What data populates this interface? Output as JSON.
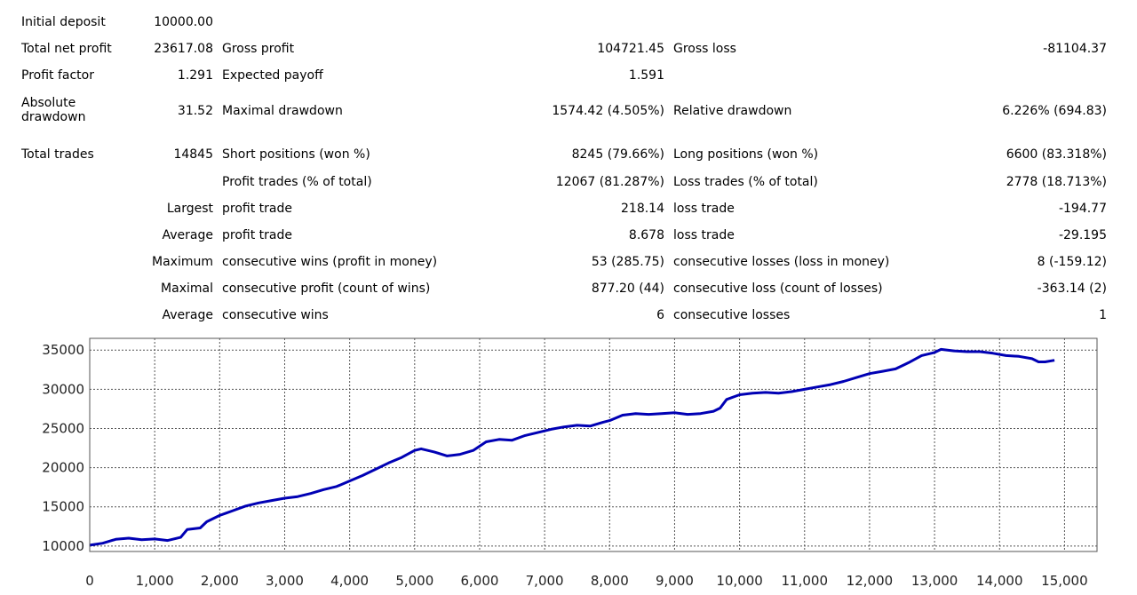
{
  "report": {
    "initial_deposit": {
      "label": "Initial deposit",
      "value": "10000.00"
    },
    "total_net_profit": {
      "label": "Total net profit",
      "value": "23617.08"
    },
    "gross_profit": {
      "label": "Gross profit",
      "value": "104721.45"
    },
    "gross_loss": {
      "label": "Gross loss",
      "value": "-81104.37"
    },
    "profit_factor": {
      "label": "Profit factor",
      "value": "1.291"
    },
    "expected_payoff": {
      "label": "Expected payoff",
      "value": "1.591"
    },
    "absolute_drawdown": {
      "label": "Absolute drawdown",
      "value": "31.52"
    },
    "maximal_drawdown": {
      "label": "Maximal drawdown",
      "value": "1574.42 (4.505%)"
    },
    "relative_drawdown": {
      "label": "Relative drawdown",
      "value": "6.226% (694.83)"
    },
    "total_trades": {
      "label": "Total trades",
      "value": "14845"
    },
    "short_positions": {
      "label": "Short positions (won %)",
      "value": "8245 (79.66%)"
    },
    "long_positions": {
      "label": "Long positions (won %)",
      "value": "6600 (83.318%)"
    },
    "profit_trades": {
      "label": "Profit trades (% of total)",
      "value": "12067 (81.287%)"
    },
    "loss_trades": {
      "label": "Loss trades (% of total)",
      "value": "2778 (18.713%)"
    },
    "largest": {
      "prefix": "Largest",
      "profit_label": "profit trade",
      "profit_value": "218.14",
      "loss_label": "loss trade",
      "loss_value": "-194.77"
    },
    "average": {
      "prefix": "Average",
      "profit_label": "profit trade",
      "profit_value": "8.678",
      "loss_label": "loss trade",
      "loss_value": "-29.195"
    },
    "maximum": {
      "prefix": "Maximum",
      "wins_label": "consecutive wins (profit in money)",
      "wins_value": "53 (285.75)",
      "losses_label": "consecutive losses (loss in money)",
      "losses_value": "8 (-159.12)"
    },
    "maximal": {
      "prefix": "Maximal",
      "profit_label": "consecutive profit (count of wins)",
      "profit_value": "877.20 (44)",
      "loss_label": "consecutive loss (count of losses)",
      "loss_value": "-363.14 (2)"
    },
    "average_consecutive": {
      "prefix": "Average",
      "wins_label": "consecutive wins",
      "wins_value": "6",
      "losses_label": "consecutive losses",
      "losses_value": "1"
    }
  },
  "chart_data": {
    "type": "line",
    "title": "",
    "xlabel": "",
    "ylabel": "",
    "xlim": [
      0,
      15500
    ],
    "ylim": [
      9300,
      36500
    ],
    "x_ticks": [
      0,
      1000,
      2000,
      3000,
      4000,
      5000,
      6000,
      7000,
      8000,
      9000,
      10000,
      11000,
      12000,
      13000,
      14000,
      15000
    ],
    "x_tick_labels": [
      "0",
      "1,000",
      "2,000",
      "3,000",
      "4,000",
      "5,000",
      "6,000",
      "7,000",
      "8,000",
      "9,000",
      "10,000",
      "11,000",
      "12,000",
      "13,000",
      "14,000",
      "15,000"
    ],
    "y_ticks": [
      10000,
      15000,
      20000,
      25000,
      30000,
      35000
    ],
    "y_tick_labels": [
      "10000",
      "15000",
      "20000",
      "25000",
      "30000",
      "35000"
    ],
    "grid": true,
    "line_color": "#0000b4",
    "series": [
      {
        "values": [
          [
            0,
            10100
          ],
          [
            200,
            10350
          ],
          [
            400,
            10850
          ],
          [
            600,
            11000
          ],
          [
            800,
            10800
          ],
          [
            1000,
            10900
          ],
          [
            1200,
            10700
          ],
          [
            1400,
            11100
          ],
          [
            1500,
            12100
          ],
          [
            1700,
            12300
          ],
          [
            1800,
            13100
          ],
          [
            2000,
            13900
          ],
          [
            2200,
            14500
          ],
          [
            2400,
            15100
          ],
          [
            2600,
            15500
          ],
          [
            2800,
            15800
          ],
          [
            3000,
            16100
          ],
          [
            3200,
            16300
          ],
          [
            3400,
            16700
          ],
          [
            3600,
            17200
          ],
          [
            3800,
            17600
          ],
          [
            4000,
            18300
          ],
          [
            4200,
            19000
          ],
          [
            4400,
            19800
          ],
          [
            4600,
            20600
          ],
          [
            4800,
            21300
          ],
          [
            5000,
            22200
          ],
          [
            5100,
            22400
          ],
          [
            5300,
            22000
          ],
          [
            5500,
            21500
          ],
          [
            5700,
            21700
          ],
          [
            5900,
            22200
          ],
          [
            6100,
            23300
          ],
          [
            6300,
            23600
          ],
          [
            6500,
            23500
          ],
          [
            6700,
            24100
          ],
          [
            6900,
            24500
          ],
          [
            7100,
            24900
          ],
          [
            7300,
            25200
          ],
          [
            7500,
            25400
          ],
          [
            7700,
            25300
          ],
          [
            7900,
            25800
          ],
          [
            8000,
            26000
          ],
          [
            8200,
            26700
          ],
          [
            8400,
            26900
          ],
          [
            8600,
            26800
          ],
          [
            8800,
            26900
          ],
          [
            9000,
            27000
          ],
          [
            9200,
            26800
          ],
          [
            9400,
            26900
          ],
          [
            9600,
            27200
          ],
          [
            9700,
            27600
          ],
          [
            9800,
            28700
          ],
          [
            10000,
            29300
          ],
          [
            10200,
            29500
          ],
          [
            10400,
            29600
          ],
          [
            10600,
            29500
          ],
          [
            10800,
            29700
          ],
          [
            11000,
            30000
          ],
          [
            11200,
            30300
          ],
          [
            11400,
            30600
          ],
          [
            11600,
            31000
          ],
          [
            11800,
            31500
          ],
          [
            12000,
            32000
          ],
          [
            12200,
            32300
          ],
          [
            12400,
            32600
          ],
          [
            12600,
            33400
          ],
          [
            12800,
            34300
          ],
          [
            13000,
            34700
          ],
          [
            13100,
            35100
          ],
          [
            13300,
            34900
          ],
          [
            13500,
            34800
          ],
          [
            13700,
            34800
          ],
          [
            13900,
            34600
          ],
          [
            14100,
            34300
          ],
          [
            14300,
            34200
          ],
          [
            14500,
            33900
          ],
          [
            14600,
            33500
          ],
          [
            14700,
            33500
          ],
          [
            14845,
            33700
          ]
        ]
      }
    ]
  }
}
